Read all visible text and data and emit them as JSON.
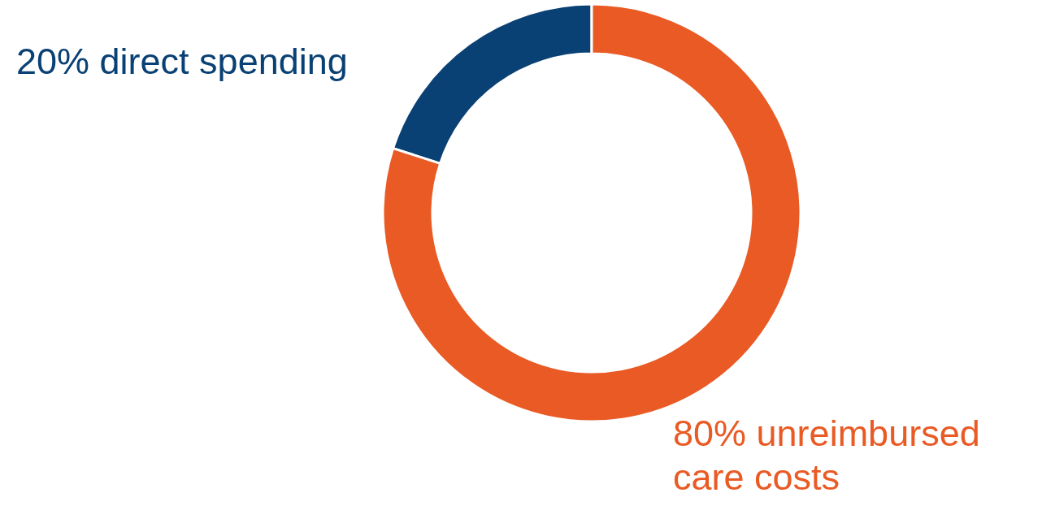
{
  "chart_data": {
    "type": "donut",
    "categories": [
      "direct spending",
      "unreimbursed care costs"
    ],
    "values": [
      20,
      80
    ],
    "colors": [
      "#0a4174",
      "#e95a24"
    ],
    "value_labels": [
      "20%",
      "80%"
    ],
    "legend": false
  }
}
